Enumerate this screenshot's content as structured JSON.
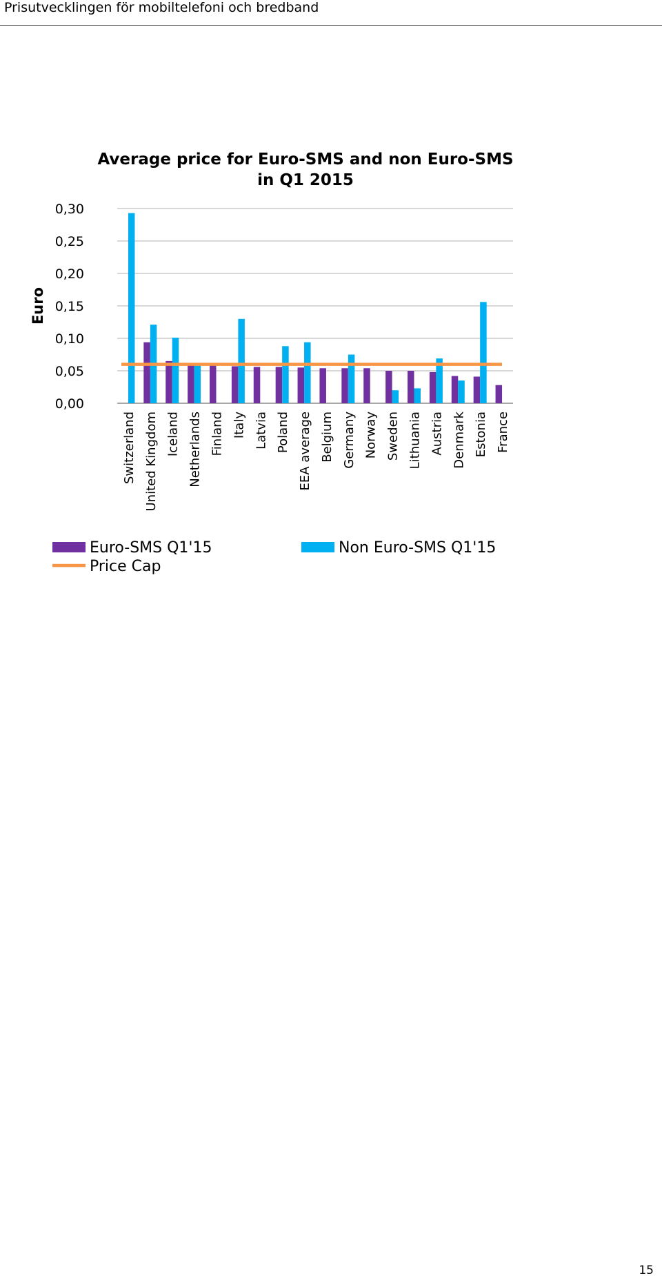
{
  "header": {
    "title": "Prisutvecklingen för mobiltelefoni och bredband"
  },
  "page_number": "15",
  "chart_data": {
    "type": "bar",
    "title_lines": [
      "Average price for Euro-SMS and non Euro-SMS",
      "in Q1 2015"
    ],
    "ylabel": "Euro",
    "xlabel": "",
    "ylim": [
      0,
      0.3
    ],
    "yticks": [
      "0,00",
      "0,05",
      "0,10",
      "0,15",
      "0,20",
      "0,25",
      "0,30"
    ],
    "grid": "horizontal",
    "legend_position": "bottom",
    "categories": [
      "Switzerland",
      "United Kingdom",
      "Iceland",
      "Netherlands",
      "Finland",
      "Italy",
      "Latvia",
      "Poland",
      "EEA average",
      "Belgium",
      "Germany",
      "Norway",
      "Sweden",
      "Lithuania",
      "Austria",
      "Denmark",
      "Estonia",
      "France"
    ],
    "series": [
      {
        "name": "Euro-SMS Q1'15",
        "color": "#7030a0",
        "values": [
          null,
          0.094,
          0.065,
          0.06,
          0.059,
          0.057,
          0.056,
          0.056,
          0.055,
          0.054,
          0.054,
          0.054,
          0.05,
          0.05,
          0.048,
          0.042,
          0.041,
          0.028
        ]
      },
      {
        "name": "Non Euro-SMS Q1'15",
        "color": "#00b0f0",
        "values": [
          0.293,
          0.121,
          0.101,
          0.059,
          null,
          0.13,
          null,
          0.088,
          0.094,
          null,
          0.075,
          null,
          0.02,
          0.023,
          0.069,
          0.035,
          0.156,
          null
        ]
      }
    ],
    "reference_line": {
      "name": "Price Cap",
      "value": 0.06,
      "color": "#f79646"
    }
  }
}
